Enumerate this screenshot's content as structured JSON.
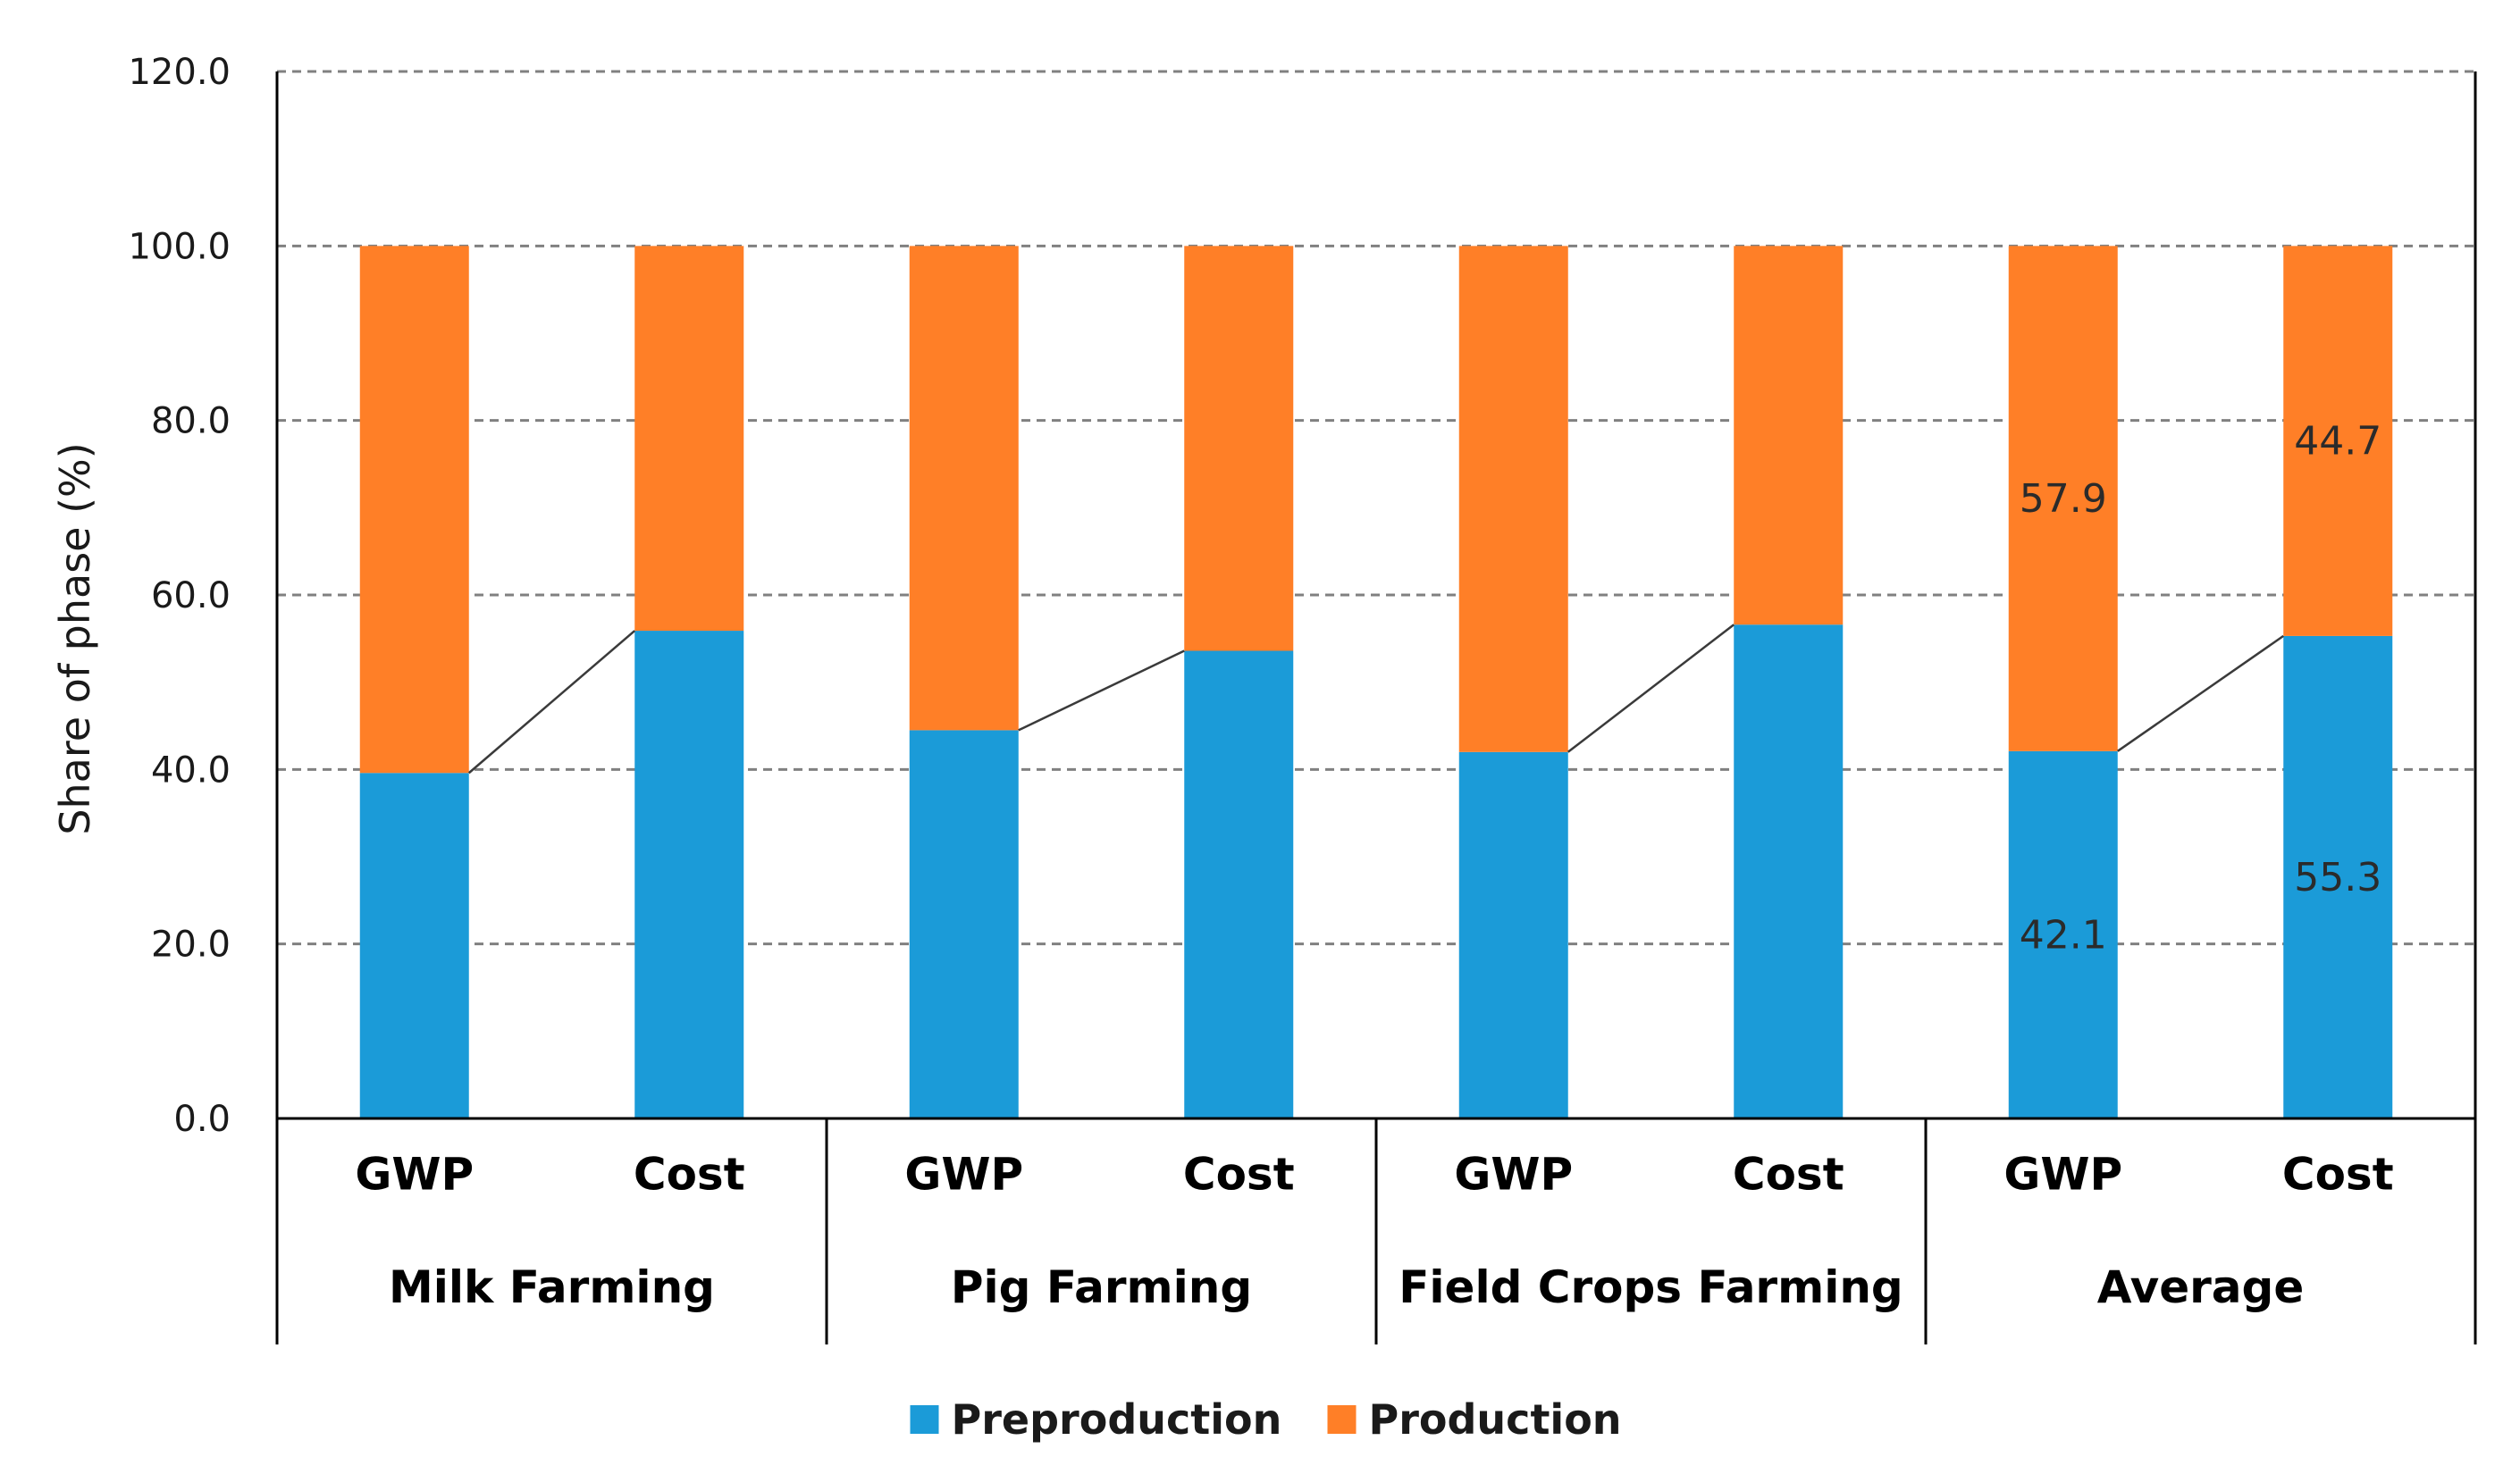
{
  "chart_data": {
    "type": "bar",
    "stacked": true,
    "ylabel": "Share of phase (%)",
    "ylim": [
      0,
      120
    ],
    "yticks": [
      0,
      20,
      40,
      60,
      80,
      100,
      120
    ],
    "ytick_labels": [
      "0.0",
      "20.0",
      "40.0",
      "60.0",
      "80.0",
      "100.0",
      "120.0"
    ],
    "groups": [
      "Milk Farming",
      "Pig Farming",
      "Field Crops Farming",
      "Average"
    ],
    "categories": [
      "GWP",
      "Cost",
      "GWP",
      "Cost",
      "GWP",
      "Cost",
      "GWP",
      "Cost"
    ],
    "series": [
      {
        "name": "Preproduction",
        "color": "#1b9bd8",
        "values": [
          39.6,
          55.9,
          44.5,
          53.6,
          42.0,
          56.6,
          42.1,
          55.3
        ]
      },
      {
        "name": "Production",
        "color": "#ff7f27",
        "values": [
          60.4,
          44.1,
          55.5,
          46.4,
          58.0,
          43.4,
          57.9,
          44.7
        ]
      }
    ],
    "connectors": "lines join the top of the Preproduction segment of each GWP bar to the Cost bar in the same group",
    "data_labels": [
      {
        "bar_index": 6,
        "series": "Production",
        "text": "57.9"
      },
      {
        "bar_index": 7,
        "series": "Production",
        "text": "44.7"
      },
      {
        "bar_index": 6,
        "series": "Preproduction",
        "text": "42.1"
      },
      {
        "bar_index": 7,
        "series": "Preproduction",
        "text": "55.3"
      }
    ],
    "legend": {
      "position": "bottom",
      "entries": [
        "Preproduction",
        "Production"
      ]
    },
    "grid": true
  }
}
